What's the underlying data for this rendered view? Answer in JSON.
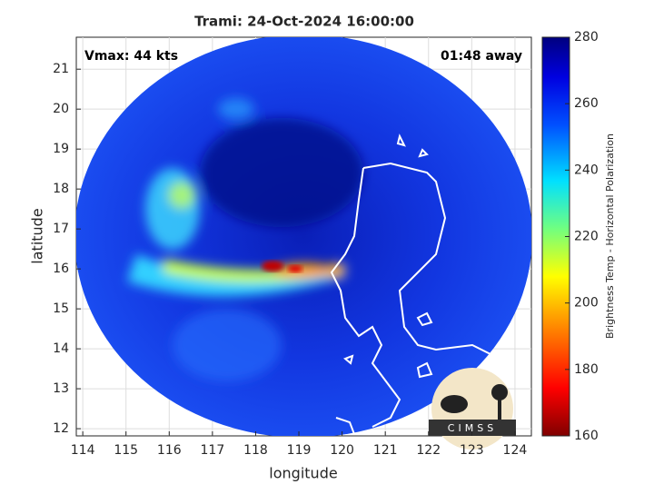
{
  "chart_data": {
    "type": "image",
    "title": "Trami: 24-Oct-2024 16:00:00",
    "xlabel": "longitude",
    "ylabel": "latitude",
    "xlim": [
      113.85,
      124.38
    ],
    "ylim": [
      11.82,
      21.8
    ],
    "xticks": [
      114,
      115,
      116,
      117,
      118,
      119,
      120,
      121,
      122,
      123,
      124
    ],
    "yticks": [
      12,
      13,
      14,
      15,
      16,
      17,
      18,
      19,
      20,
      21
    ],
    "grid": true,
    "annotations": [
      "Vmax: 44 kts",
      "01:48 away"
    ],
    "logo": "CIMSS",
    "colorbar_label": "Brightness Temp - Horizontal Polarization",
    "clim": [
      160,
      280
    ],
    "cticks": [
      160,
      180,
      200,
      220,
      240,
      260,
      280
    ]
  }
}
